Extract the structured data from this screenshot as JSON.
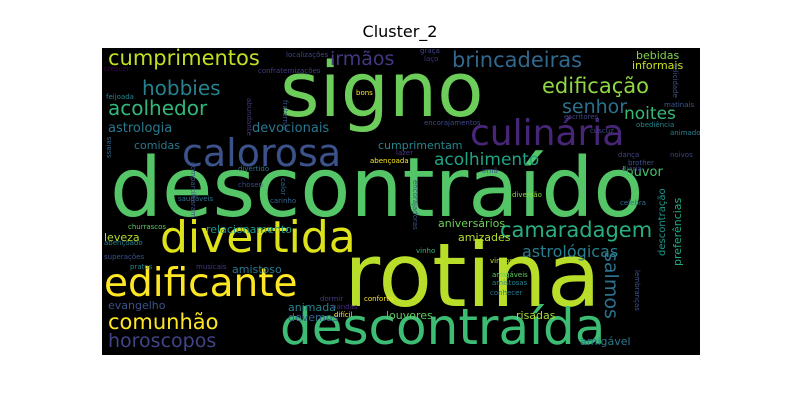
{
  "title": "Cluster_2",
  "colors": {
    "background": "#ffffff",
    "cloud_background": "#000000"
  },
  "words": [
    {
      "text": "signo",
      "color": "#6ccd5a"
    },
    {
      "text": "descontraído",
      "color": "#55c667"
    },
    {
      "text": "rotina",
      "color": "#b8de29"
    },
    {
      "text": "descontraída",
      "color": "#3dbc74"
    },
    {
      "text": "divertida",
      "color": "#dde318"
    },
    {
      "text": "calorosa",
      "color": "#3b528b"
    },
    {
      "text": "edificante",
      "color": "#fde725"
    },
    {
      "text": "culinária",
      "color": "#482677"
    },
    {
      "text": "camaradagem",
      "color": "#29af7f"
    },
    {
      "text": "cumprimentos",
      "color": "#c2df23"
    },
    {
      "text": "edificação",
      "color": "#8fd744"
    },
    {
      "text": "brincadeiras",
      "color": "#31688e"
    },
    {
      "text": "hobbies",
      "color": "#26828e"
    },
    {
      "text": "irmãos",
      "color": "#453781"
    },
    {
      "text": "comunhão",
      "color": "#fde725"
    },
    {
      "text": "acolhedor",
      "color": "#33b67a"
    },
    {
      "text": "horoscopos",
      "color": "#414487"
    },
    {
      "text": "senhor",
      "color": "#2d708e"
    },
    {
      "text": "acolhimento",
      "color": "#20a386"
    },
    {
      "text": "salmos",
      "color": "#2c728e"
    },
    {
      "text": "astrológicas",
      "color": "#287d8e"
    },
    {
      "text": "noites",
      "color": "#38b977"
    },
    {
      "text": "astrologia",
      "color": "#2a788e"
    },
    {
      "text": "devocionais",
      "color": "#2a788e"
    },
    {
      "text": "bebidas",
      "color": "#84d44b"
    },
    {
      "text": "informais",
      "color": "#c8e020"
    },
    {
      "text": "louvor",
      "color": "#46c06f"
    },
    {
      "text": "relacionamento",
      "color": "#1f988b"
    },
    {
      "text": "aniversários",
      "color": "#6ece58"
    },
    {
      "text": "amizades",
      "color": "#b5de2b"
    },
    {
      "text": "amistoso",
      "color": "#2a788e"
    },
    {
      "text": "leveza",
      "color": "#b5de2b"
    },
    {
      "text": "evangelho",
      "color": "#3b528b"
    },
    {
      "text": "animada",
      "color": "#26828e"
    },
    {
      "text": "louvores",
      "color": "#5ec962"
    },
    {
      "text": "risadas",
      "color": "#a5db36"
    },
    {
      "text": "devemos",
      "color": "#33638d"
    },
    {
      "text": "amigável",
      "color": "#2a788e"
    },
    {
      "text": "preferências",
      "color": "#22a884"
    },
    {
      "text": "descontração",
      "color": "#1f968b"
    },
    {
      "text": "comidas",
      "color": "#2a788e"
    },
    {
      "text": "cumprimentam",
      "color": "#24868e"
    },
    {
      "text": "abençoada",
      "color": "#fde725"
    },
    {
      "text": "lazer",
      "color": "#443983"
    },
    {
      "text": "diversão",
      "color": "#8fd744"
    },
    {
      "text": "chosen",
      "color": "#3e4989"
    },
    {
      "text": "conforto",
      "color": "#fde725"
    },
    {
      "text": "amistosas",
      "color": "#26828e"
    },
    {
      "text": "amigáveis",
      "color": "#5ec962"
    },
    {
      "text": "conhecer",
      "color": "#2a788e"
    },
    {
      "text": "dormir",
      "color": "#443983"
    },
    {
      "text": "bandas",
      "color": "#482878"
    },
    {
      "text": "difícil",
      "color": "#fde725"
    },
    {
      "text": "vinho",
      "color": "#32b67a"
    },
    {
      "text": "vindos",
      "color": "#b8de29"
    },
    {
      "text": "churrascos",
      "color": "#5ec962"
    },
    {
      "text": "abençoado",
      "color": "#26828e"
    },
    {
      "text": "superações",
      "color": "#3b528b"
    },
    {
      "text": "pratos",
      "color": "#24868e"
    },
    {
      "text": "musicais",
      "color": "#443983"
    },
    {
      "text": "feijoada",
      "color": "#24868e"
    },
    {
      "text": "bons",
      "color": "#fde725"
    },
    {
      "text": "abundante",
      "color": "#443983"
    },
    {
      "text": "carinho",
      "color": "#31688e"
    },
    {
      "text": "encorajamentos",
      "color": "#3e4989"
    },
    {
      "text": "localizações",
      "color": "#404588"
    },
    {
      "text": "graça",
      "color": "#404588"
    },
    {
      "text": "confraternizações",
      "color": "#433e85"
    },
    {
      "text": "laço",
      "color": "#46337f"
    },
    {
      "text": "crescer",
      "color": "#440154"
    },
    {
      "text": "fraternal",
      "color": "#3b528b"
    },
    {
      "text": "escritores",
      "color": "#404588"
    },
    {
      "text": "cuscuz",
      "color": "#3e4989"
    },
    {
      "text": "matinais",
      "color": "#38598c"
    },
    {
      "text": "felicidade",
      "color": "#3b528b"
    },
    {
      "text": "obediência",
      "color": "#24868e"
    },
    {
      "text": "animado",
      "color": "#287d8e"
    },
    {
      "text": "dança",
      "color": "#404588"
    },
    {
      "text": "diária",
      "color": "#404588"
    },
    {
      "text": "brother",
      "color": "#3b528b"
    },
    {
      "text": "noivos",
      "color": "#404588"
    },
    {
      "text": "irmã",
      "color": "#3b528b"
    },
    {
      "text": "divertido",
      "color": "#2c728e"
    },
    {
      "text": "saudáveis",
      "color": "#2c728e"
    },
    {
      "text": "calor",
      "color": "#31688e"
    },
    {
      "text": "compartilharam",
      "color": "#3b528b"
    },
    {
      "text": "celebra",
      "color": "#2c728e"
    },
    {
      "text": "encorajadoras",
      "color": "#3b528b"
    },
    {
      "text": "lembranças",
      "color": "#3b528b"
    },
    {
      "text": "conversando",
      "color": "#482878"
    },
    {
      "text": "ssaias",
      "color": "#31688e"
    }
  ]
}
